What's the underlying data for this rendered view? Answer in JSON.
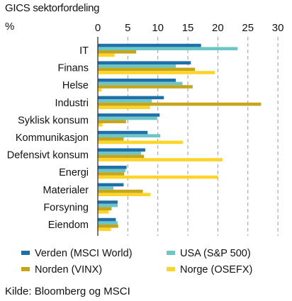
{
  "chart_data": {
    "type": "bar",
    "orientation": "horizontal",
    "title": "GICS sektorfordeling",
    "unit_label": "%",
    "xlim": [
      0,
      30
    ],
    "x_ticks": [
      "0",
      "5",
      "10",
      "15",
      "20",
      "25",
      "30"
    ],
    "categories": [
      "IT",
      "Finans",
      "Helse",
      "Industri",
      "Syklisk konsum",
      "Kommunikasjon",
      "Defensivt konsum",
      "Energi",
      "Materialer",
      "Forsyning",
      "Eiendom"
    ],
    "series": [
      {
        "name": "Verden (MSCI World)",
        "color": "#1f6fa8",
        "values": [
          17.2,
          15.5,
          13.0,
          11.0,
          10.3,
          8.3,
          7.9,
          4.8,
          4.3,
          3.3,
          3.0
        ]
      },
      {
        "name": "USA (S&P 500)",
        "color": "#6cc5c7",
        "values": [
          23.3,
          13.0,
          14.1,
          9.0,
          9.9,
          10.4,
          7.2,
          4.6,
          2.6,
          3.3,
          3.3
        ]
      },
      {
        "name": "Norden (VINX)",
        "color": "#c5a51b",
        "values": [
          6.4,
          16.2,
          15.8,
          27.2,
          4.7,
          4.3,
          7.7,
          4.4,
          7.5,
          2.3,
          3.4
        ]
      },
      {
        "name": "Norge (OSEFX)",
        "color": "#ffd42a",
        "values": [
          2.8,
          19.5,
          0.6,
          8.7,
          0.8,
          14.2,
          20.8,
          20.0,
          8.8,
          1.8,
          2.2
        ]
      }
    ],
    "grid": "vertical dashed",
    "legend_position": "bottom"
  },
  "source": "Kilde: Bloomberg og MSCI"
}
